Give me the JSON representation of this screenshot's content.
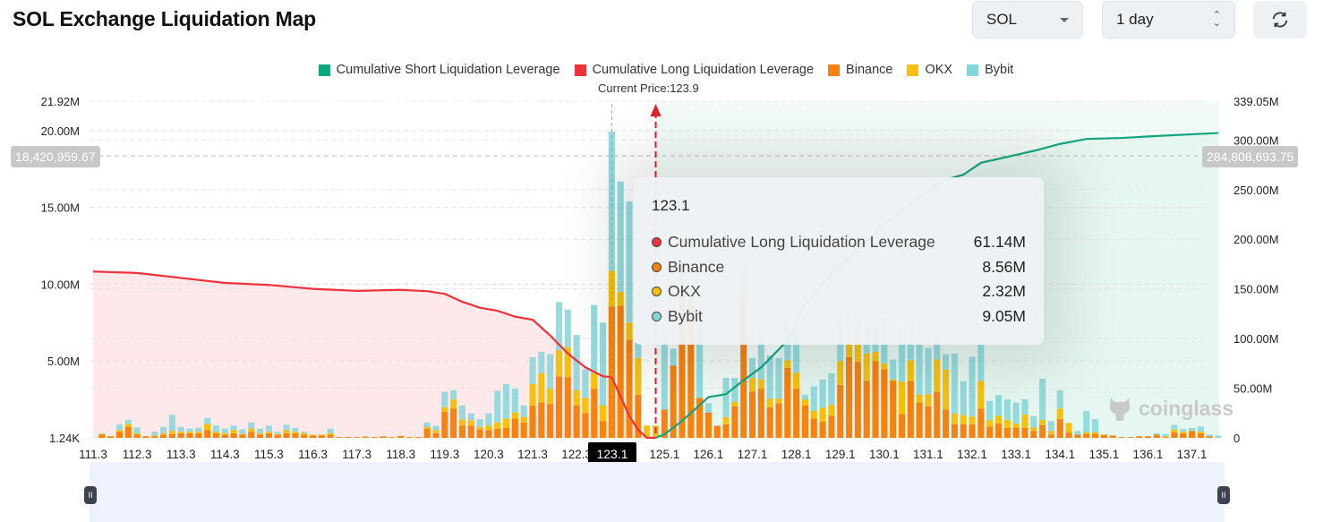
{
  "header": {
    "title": "SOL Exchange Liquidation Map",
    "symbol": "SOL",
    "period": "1 day",
    "refresh_icon": "refresh-icon"
  },
  "watermark": "coinglass",
  "current_price_label": "Current Price:123.9",
  "crosshair": {
    "left_value": "18,420,959.67",
    "right_value": "284,808,693.75",
    "x_label": "123.1"
  },
  "tooltip": {
    "title": "123.1",
    "rows": [
      {
        "label": "Cumulative Long Liquidation Leverage",
        "value": "61.14M",
        "color": "#f0323c"
      },
      {
        "label": "Binance",
        "value": "8.56M",
        "color": "#f7820f"
      },
      {
        "label": "OKX",
        "value": "2.32M",
        "color": "#f7c10b"
      },
      {
        "label": "Bybit",
        "value": "9.05M",
        "color": "#85d6d9"
      }
    ]
  },
  "chart_data": {
    "type": "bar",
    "stacked": true,
    "legend": [
      {
        "name": "Cumulative Short Liquidation Leverage",
        "color": "#12a67f"
      },
      {
        "name": "Cumulative Long Liquidation Leverage",
        "color": "#f0323c"
      },
      {
        "name": "Binance",
        "color": "#f7820f"
      },
      {
        "name": "OKX",
        "color": "#f7c10b"
      },
      {
        "name": "Bybit",
        "color": "#85d6d9"
      }
    ],
    "legend_position": "top",
    "grid": true,
    "left_axis": {
      "ticks": [
        "1.24K",
        "5.00M",
        "10.00M",
        "15.00M",
        "20.00M",
        "21.92M"
      ],
      "tick_values": [
        0,
        5,
        10,
        15,
        20,
        21.92
      ],
      "range_millions": [
        0,
        21.92
      ]
    },
    "right_axis": {
      "ticks": [
        "0",
        "50.00M",
        "100.00M",
        "150.00M",
        "200.00M",
        "250.00M",
        "300.00M",
        "339.05M"
      ],
      "tick_values": [
        0,
        50,
        100,
        150,
        200,
        250,
        300,
        339.05
      ],
      "range_millions": [
        0,
        339.05
      ]
    },
    "x_ticks": [
      {
        "i": 0,
        "label": "111.3"
      },
      {
        "i": 5,
        "label": "112.3"
      },
      {
        "i": 10,
        "label": "113.3"
      },
      {
        "i": 15,
        "label": "114.3"
      },
      {
        "i": 20,
        "label": "115.3"
      },
      {
        "i": 25,
        "label": "116.3"
      },
      {
        "i": 30,
        "label": "117.3"
      },
      {
        "i": 35,
        "label": "118.3"
      },
      {
        "i": 40,
        "label": "119.3"
      },
      {
        "i": 45,
        "label": "120.3"
      },
      {
        "i": 50,
        "label": "121.3"
      },
      {
        "i": 55,
        "label": "122.3"
      },
      {
        "i": 65,
        "label": "125.1"
      },
      {
        "i": 70,
        "label": "126.1"
      },
      {
        "i": 75,
        "label": "127.1"
      },
      {
        "i": 80,
        "label": "128.1"
      },
      {
        "i": 85,
        "label": "129.1"
      },
      {
        "i": 90,
        "label": "130.1"
      },
      {
        "i": 95,
        "label": "131.1"
      },
      {
        "i": 100,
        "label": "132.1"
      },
      {
        "i": 105,
        "label": "133.1"
      },
      {
        "i": 110,
        "label": "134.1"
      },
      {
        "i": 115,
        "label": "135.1"
      },
      {
        "i": 120,
        "label": "136.1"
      },
      {
        "i": 125,
        "label": "137.1"
      }
    ],
    "highlight_index": 59,
    "current_price_index": 64,
    "series": [
      {
        "name": "Binance",
        "axis": "left",
        "values": [
          0,
          0.2,
          0.1,
          0.4,
          0.7,
          0.2,
          0.1,
          0.1,
          0.2,
          0.25,
          0.3,
          0.3,
          0.3,
          0.5,
          0.3,
          0.2,
          0.3,
          0.2,
          0.4,
          0.2,
          0.3,
          0.2,
          0.3,
          0.3,
          0.2,
          0.15,
          0.15,
          0.2,
          0.05,
          0.05,
          0.05,
          0.08,
          0.05,
          0.1,
          0.05,
          0.12,
          0.05,
          0.05,
          0.6,
          0.3,
          1.7,
          1.9,
          0.8,
          0.8,
          0.55,
          0.5,
          0.6,
          0.65,
          1.25,
          1.0,
          2.1,
          2.3,
          2.2,
          4.0,
          3.95,
          2.1,
          1.6,
          3.2,
          1.1,
          8.56,
          8.6,
          6.4,
          2.8,
          0,
          0,
          1.85,
          4.7,
          9.5,
          9.0,
          2.6,
          1.65,
          0.78,
          0.88,
          2.05,
          9.0,
          3.0,
          3.2,
          2.0,
          2.25,
          4.55,
          3.2,
          2.1,
          1.25,
          1.05,
          1.45,
          3.45,
          5.25,
          4.95,
          3.7,
          5.0,
          4.45,
          3.7,
          1.55,
          3.7,
          2.3,
          2.05,
          3.0,
          1.85,
          0.88,
          0.88,
          0.88,
          1.9,
          0.74,
          0.93,
          0.64,
          0.68,
          0.64,
          0.45,
          0.84,
          0.2,
          1.22,
          0.35,
          0.2,
          0.25,
          0.25,
          0.2,
          0.15,
          0.05,
          0.05,
          0.1,
          0.1,
          0.2,
          0.05,
          0.35,
          0.3,
          0.45,
          0.3,
          0.1,
          0.0
        ]
      },
      {
        "name": "OKX",
        "axis": "left",
        "values": [
          0,
          0.05,
          0,
          0.1,
          0.2,
          0.1,
          0,
          0.05,
          0.1,
          0.2,
          0.1,
          0.1,
          0.1,
          0.4,
          0.1,
          0.1,
          0.2,
          0.05,
          0.2,
          0.1,
          0.1,
          0.05,
          0.2,
          0.1,
          0.1,
          0.05,
          0.05,
          0.1,
          0,
          0,
          0,
          0,
          0,
          0,
          0,
          0,
          0,
          0,
          0.1,
          0.2,
          0.3,
          0.6,
          0.4,
          0.35,
          0.15,
          0.3,
          0.4,
          0.6,
          0.4,
          0.35,
          1.4,
          1.9,
          1.0,
          1.7,
          1.95,
          1.0,
          1.0,
          1.0,
          1.0,
          2.32,
          0.9,
          1.1,
          2.4,
          0.8,
          0.8,
          0,
          0,
          0.5,
          0,
          0,
          0,
          0,
          0.47,
          0.3,
          0.5,
          0.9,
          0.6,
          0.55,
          0.3,
          0.5,
          1.05,
          0.4,
          0.5,
          0.9,
          0.7,
          1.55,
          1.5,
          1.5,
          1.8,
          0.6,
          0.4,
          0.1,
          2.1,
          1.35,
          0.5,
          0.8,
          2.1,
          2.6,
          0.7,
          0.6,
          0.5,
          1.8,
          0.4,
          0.5,
          0.52,
          0.25,
          0.87,
          0.23,
          0.33,
          0.25,
          0.68,
          0.62,
          0,
          0.1,
          0.1,
          0,
          0,
          0,
          0,
          0,
          0,
          0,
          0.05,
          0.2,
          0.1,
          0,
          0.1,
          0,
          0
        ]
      },
      {
        "name": "Bybit",
        "axis": "left",
        "values": [
          0,
          0.05,
          0,
          0.37,
          0.27,
          0.38,
          0,
          0.25,
          0.4,
          1.05,
          0.3,
          0.2,
          0.25,
          0.4,
          0.4,
          0.3,
          0.3,
          0.3,
          0.4,
          0.3,
          0.4,
          0.15,
          0.35,
          0.25,
          0.1,
          0,
          0,
          0.3,
          0,
          0,
          0,
          0,
          0,
          0,
          0,
          0,
          0,
          0,
          0.3,
          0.27,
          1.0,
          0.6,
          0.9,
          0.45,
          0.5,
          0.8,
          2.05,
          2.25,
          1.55,
          0.75,
          1.75,
          1.4,
          2.25,
          3.15,
          2.45,
          3.6,
          1.85,
          4.45,
          5.4,
          9.05,
          7.2,
          7.9,
          1.0,
          0,
          0,
          5.15,
          1.1,
          1.0,
          1.0,
          5.0,
          0.6,
          0,
          2.55,
          1.55,
          1.5,
          1.3,
          3.2,
          2.8,
          2.65,
          2.45,
          2.75,
          0.3,
          1.6,
          1.85,
          2.05,
          2.5,
          1.75,
          1.5,
          1.8,
          2.0,
          3.0,
          1.3,
          3.5,
          2.5,
          3.5,
          3.0,
          1.5,
          1.0,
          3.9,
          2.2,
          3.9,
          2.4,
          1.26,
          1.35,
          1.34,
          1.37,
          1.0,
          0.74,
          2.68,
          0.64,
          1.2,
          0,
          0.25,
          1.4,
          0.87,
          0,
          0,
          0,
          0,
          0,
          0,
          0.1,
          0.15,
          0.29,
          0.18,
          0.19,
          0.34,
          0.1,
          0.15
        ]
      },
      {
        "name": "Cumulative Long Liquidation Leverage",
        "axis": "right",
        "type": "line",
        "points": [
          [
            0,
            167.5
          ],
          [
            5,
            166
          ],
          [
            10,
            161
          ],
          [
            15,
            156
          ],
          [
            20,
            154
          ],
          [
            25,
            150
          ],
          [
            30,
            148
          ],
          [
            35,
            149
          ],
          [
            38,
            147.7
          ],
          [
            40,
            145
          ],
          [
            42,
            137
          ],
          [
            44,
            131
          ],
          [
            46,
            128
          ],
          [
            48,
            122
          ],
          [
            50,
            119
          ],
          [
            52,
            103
          ],
          [
            54,
            85
          ],
          [
            56,
            71
          ],
          [
            58,
            62
          ],
          [
            59,
            61.14
          ],
          [
            61,
            22
          ],
          [
            62,
            8
          ],
          [
            63,
            0
          ],
          [
            64,
            0
          ]
        ]
      },
      {
        "name": "Cumulative Short Liquidation Leverage",
        "axis": "right",
        "type": "line",
        "points": [
          [
            64,
            0
          ],
          [
            65,
            3.6
          ],
          [
            67,
            17
          ],
          [
            69,
            33
          ],
          [
            70,
            41
          ],
          [
            72,
            44
          ],
          [
            74,
            58
          ],
          [
            76,
            71
          ],
          [
            79,
            98
          ],
          [
            81,
            134
          ],
          [
            84,
            165
          ],
          [
            87,
            190
          ],
          [
            90,
            215
          ],
          [
            93,
            235
          ],
          [
            96,
            255
          ],
          [
            97,
            260
          ],
          [
            99,
            265
          ],
          [
            101,
            277
          ],
          [
            104,
            283
          ],
          [
            107,
            289
          ],
          [
            110,
            296
          ],
          [
            113,
            301
          ],
          [
            117,
            302
          ],
          [
            121,
            304
          ],
          [
            128,
            307
          ]
        ]
      }
    ]
  }
}
